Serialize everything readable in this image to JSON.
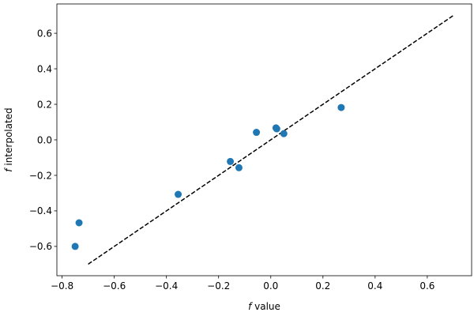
{
  "chart_data": {
    "type": "scatter",
    "xlabel": {
      "var": "f",
      "text": " value"
    },
    "ylabel": {
      "var": "f",
      "text": " interpolated"
    },
    "xlim": [
      -0.82,
      0.77
    ],
    "ylim": [
      -0.765,
      0.765
    ],
    "xticks": [
      -0.8,
      -0.6,
      -0.4,
      -0.2,
      0.0,
      0.2,
      0.4,
      0.6
    ],
    "yticks": [
      -0.6,
      -0.4,
      -0.2,
      0.0,
      0.2,
      0.4,
      0.6
    ],
    "xtick_labels": [
      "−0.8",
      "−0.6",
      "−0.4",
      "−0.2",
      "0.0",
      "0.2",
      "0.4",
      "0.6"
    ],
    "ytick_labels": [
      "−0.6",
      "−0.4",
      "−0.2",
      "0.0",
      "0.2",
      "0.4",
      "0.6"
    ],
    "grid": false,
    "points": {
      "color": "#1f77b4",
      "x": [
        -0.75,
        -0.735,
        -0.355,
        -0.155,
        -0.122,
        -0.055,
        0.02,
        0.023,
        0.05,
        0.27
      ],
      "y": [
        -0.6,
        -0.467,
        -0.307,
        -0.122,
        -0.157,
        0.042,
        0.067,
        0.062,
        0.035,
        0.182
      ]
    },
    "reference_line": {
      "style": "dashed",
      "color": "#000000",
      "x": [
        -0.7,
        0.7
      ],
      "y": [
        -0.7,
        0.7
      ]
    }
  }
}
